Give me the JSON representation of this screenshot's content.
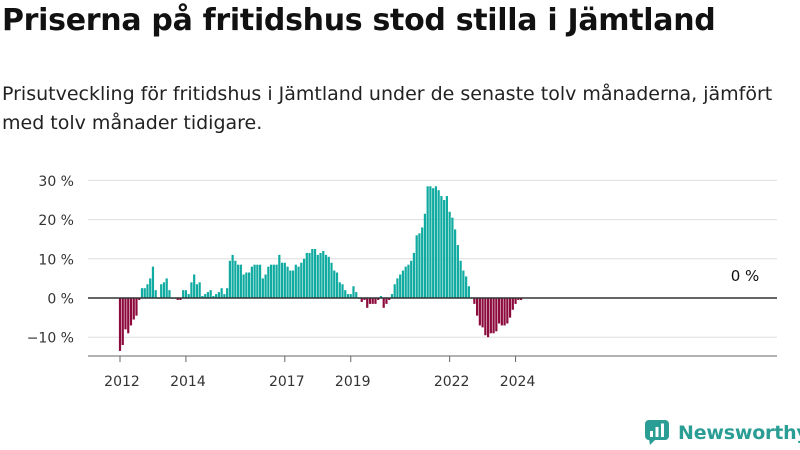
{
  "header": {
    "title": "Priserna på fritidshus stod stilla i Jämtland",
    "subtitle": "Prisutveckling för fritidshus i Jämtland under de senaste tolv månaderna, jämfört med tolv månader tidigare."
  },
  "chart_data": {
    "type": "bar",
    "x_start": "2012-01",
    "interval": "month",
    "values": [
      -13.5,
      -12,
      -8,
      -9,
      -7,
      -5.5,
      -4.5,
      -0.5,
      2.5,
      2.5,
      3.5,
      5,
      8,
      2,
      0,
      3.5,
      4,
      5,
      2,
      0,
      0,
      -0.5,
      -0.5,
      2,
      2,
      1,
      4,
      6,
      3.5,
      4,
      0.5,
      1,
      1.5,
      2,
      0.5,
      1,
      1.5,
      2.5,
      1,
      2.5,
      9.5,
      11,
      9.5,
      8.5,
      8.5,
      6,
      6.5,
      6.5,
      8,
      8.5,
      8.5,
      8.5,
      5,
      6,
      8,
      8.5,
      8.5,
      8.5,
      11,
      9,
      9,
      8,
      7,
      7,
      8.5,
      8,
      9,
      10,
      11.5,
      11.5,
      12.5,
      12.5,
      11,
      11.5,
      12,
      11,
      10.5,
      9,
      7,
      6.5,
      4,
      3.5,
      2,
      1,
      1,
      3,
      1.5,
      0,
      -1,
      -0.5,
      -2.5,
      -1.5,
      -1.5,
      -1.5,
      -0.5,
      0.5,
      -2.5,
      -1.5,
      -0.5,
      1,
      3.5,
      5,
      6,
      7,
      8,
      8.5,
      9.5,
      11.5,
      16,
      16.5,
      18,
      21.5,
      28.5,
      28.5,
      28,
      28.5,
      27.5,
      26,
      25,
      26,
      22,
      20.5,
      17.5,
      13.5,
      9.5,
      7,
      5.5,
      3,
      0,
      -1.5,
      -4.5,
      -7,
      -7.5,
      -9.5,
      -10,
      -9,
      -9,
      -8.5,
      -6.5,
      -7,
      -7,
      -6.5,
      -5,
      -3,
      -1.5,
      -0.5,
      -0.5
    ],
    "x_ticks": [
      "2012",
      "2014",
      "2017",
      "2019",
      "2022",
      "2024"
    ],
    "y_ticks": [
      "30 %",
      "20 %",
      "10 %",
      "0 %",
      "−10 %"
    ],
    "ylim": [
      -15,
      32.5
    ],
    "annotation": "0 %",
    "colors": {
      "positive": "#0faaa0",
      "negative": "#8c0a3c",
      "grid": "#dddddd",
      "zero_line": "#333333"
    }
  },
  "footer": {
    "brand": "Newsworthy",
    "brand_color": "#2a9d94",
    "logo_icon": "bar-chart-logo-icon"
  }
}
